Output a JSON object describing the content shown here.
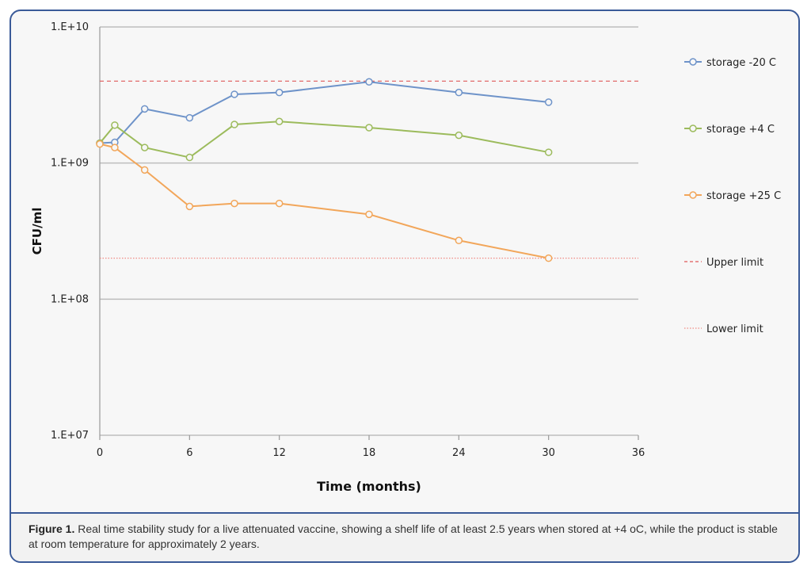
{
  "colors": {
    "storage_minus20": "#6e93c9",
    "storage_plus4": "#9cbb5c",
    "storage_plus25": "#f2a65a",
    "upper_limit": "#e05a5a",
    "lower_limit": "#f08a84",
    "grid": "#bdbdbd",
    "frame": "#3a5a98"
  },
  "caption": {
    "label": "Figure 1.",
    "text": " Real time stability study for a live attenuated vaccine, showing a shelf life of at least 2.5 years when stored at +4 oC, while the product is stable at room temperature for approximately 2 years."
  },
  "chart_data": {
    "type": "line",
    "title": "",
    "xlabel": "Time (months)",
    "ylabel": "CFU/ml",
    "x_ticks": [
      0,
      6,
      12,
      18,
      24,
      30,
      36
    ],
    "y_ticks": [
      10000000,
      100000000,
      1000000000,
      10000000000
    ],
    "y_tick_labels": [
      "1.E+07",
      "1.E+08",
      "1.E+09",
      "1.E+10"
    ],
    "xlim": [
      0,
      36
    ],
    "ylim": [
      10000000,
      10000000000
    ],
    "y_scale": "log",
    "grid": "horizontal",
    "legend_position": "right",
    "series": [
      {
        "name": "storage -20 C",
        "color": "#6e93c9",
        "x": [
          0,
          1,
          3,
          6,
          9,
          12,
          18,
          24,
          30
        ],
        "y": [
          1400000000,
          1420000000,
          2500000000,
          2150000000,
          3200000000,
          3300000000,
          3950000000,
          3300000000,
          2800000000
        ]
      },
      {
        "name": "storage +4 C",
        "color": "#9cbb5c",
        "x": [
          0,
          1,
          3,
          6,
          9,
          12,
          18,
          24,
          30
        ],
        "y": [
          1400000000,
          1900000000,
          1300000000,
          1100000000,
          1920000000,
          2020000000,
          1820000000,
          1600000000,
          1200000000
        ]
      },
      {
        "name": "storage +25 C",
        "color": "#f2a65a",
        "x": [
          0,
          1,
          3,
          6,
          9,
          12,
          18,
          24,
          30
        ],
        "y": [
          1380000000,
          1300000000,
          890000000,
          480000000,
          505000000,
          505000000,
          420000000,
          270000000,
          200000000
        ]
      }
    ],
    "reference_lines": [
      {
        "name": "Upper limit",
        "y": 4000000000,
        "style": "dashed",
        "color": "#e05a5a"
      },
      {
        "name": "Lower limit",
        "y": 200000000,
        "style": "dotted",
        "color": "#f08a84"
      }
    ]
  }
}
